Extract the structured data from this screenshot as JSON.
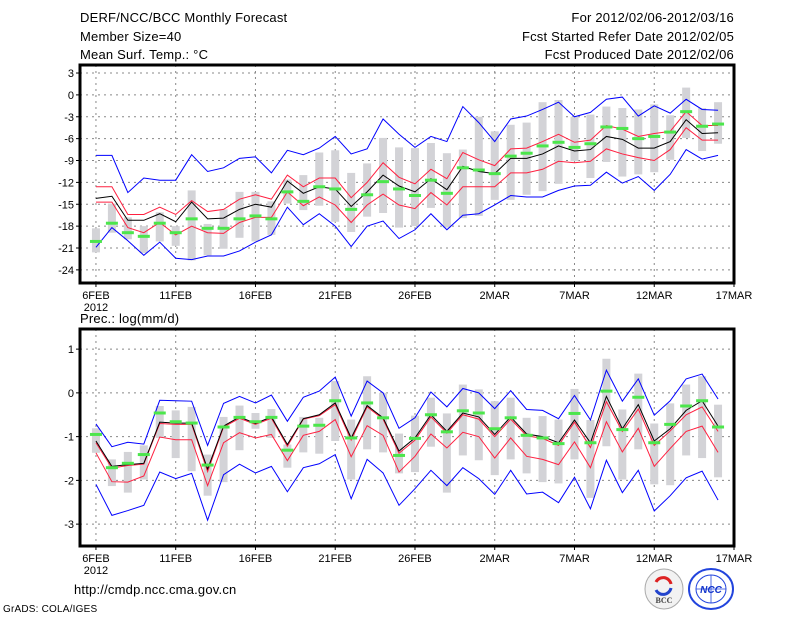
{
  "header": {
    "title": "DERF/NCC/BCC Monthly Forecast",
    "member_size": "Member Size=40",
    "variable": "Mean Surf. Temp.: °C",
    "period": "For 2012/02/06-2012/03/16",
    "start_date": "Fcst Started Refer Date 2012/02/05",
    "produced_date": "Fcst Produced Date 2012/02/06"
  },
  "footer": {
    "url": "http://cmdp.ncc.cma.gov.cn",
    "credit": "GrADS: COLA/IGES",
    "logo_bcc": "BCC",
    "logo_ncc": "NCC"
  },
  "colors": {
    "max_min": "#0000ff",
    "spread": "#ff2040",
    "mean": "#000000",
    "obs": "#4ce64c",
    "box": "#d3d3d7",
    "grid": "#888888"
  },
  "chart_data": [
    {
      "type": "line",
      "title": "Mean Surf. Temp.: °C",
      "xlabel": "",
      "ylabel": "",
      "x_tick_labels": [
        "6FEB",
        "11FEB",
        "16FEB",
        "21FEB",
        "26FEB",
        "2MAR",
        "7MAR",
        "12MAR",
        "17MAR"
      ],
      "x_tick_days": [
        0,
        5,
        10,
        15,
        20,
        25,
        30,
        35,
        40
      ],
      "year_label": "2012",
      "y_ticks": [
        3,
        0,
        -3,
        -6,
        -9,
        -12,
        -15,
        -18,
        -21,
        -24
      ],
      "y_tick_labels": [
        "3",
        "0",
        "-3",
        "-6",
        "-9",
        "-12",
        "-15",
        "-18",
        "-21",
        "-24"
      ],
      "ylim": [
        -25.8,
        4.1
      ],
      "xlim": [
        -1,
        40
      ],
      "grid": true,
      "series": [
        {
          "name": "max",
          "role": "max_min",
          "values": [
            -8.3,
            -8.3,
            -13.4,
            -11.4,
            -11.7,
            -11.7,
            -8.2,
            -10.5,
            -10,
            -8.7,
            -8.5,
            -10.7,
            -7.6,
            -8.2,
            -7.3,
            -5.7,
            -8.1,
            -7.4,
            -3.3,
            -5.4,
            -7.2,
            -5.7,
            -6.4,
            -1.6,
            -3.8,
            -6.4,
            -3.3,
            -2.9,
            -2.0,
            -1.0,
            -3.0,
            -2.4,
            -0.6,
            -0.3,
            -2.9,
            -1.5,
            -2.5,
            -0.6,
            -2.0,
            -2.1
          ]
        },
        {
          "name": "upper",
          "role": "spread",
          "values": [
            -12.6,
            -12.6,
            -16.4,
            -16.4,
            -15.4,
            -16.4,
            -14.5,
            -16,
            -15.7,
            -14.3,
            -13.7,
            -14.3,
            -11,
            -12.6,
            -11.4,
            -11.4,
            -14.1,
            -12,
            -9.3,
            -11.3,
            -12.2,
            -10.2,
            -11.5,
            -7.9,
            -8.9,
            -9.7,
            -7.4,
            -7.3,
            -6.4,
            -5.4,
            -6.5,
            -6.2,
            -4.2,
            -4.7,
            -5.7,
            -5.3,
            -5.0,
            -2.3,
            -4.2,
            -4.2
          ]
        },
        {
          "name": "mean",
          "role": "mean",
          "values": [
            -14.2,
            -13.9,
            -17.2,
            -17.2,
            -16.3,
            -17.4,
            -14.7,
            -17,
            -16.9,
            -15.7,
            -15,
            -15.4,
            -11.8,
            -13.5,
            -12.6,
            -12.9,
            -15.3,
            -13.3,
            -11,
            -12.5,
            -13.3,
            -11.5,
            -13,
            -9.8,
            -10.5,
            -10.8,
            -8.7,
            -8.7,
            -8.1,
            -7,
            -7.7,
            -7.5,
            -5.7,
            -6.1,
            -7.3,
            -7.3,
            -6.4,
            -3.4,
            -5.3,
            -5.2
          ]
        },
        {
          "name": "lower",
          "role": "spread",
          "values": [
            -14.7,
            -14.7,
            -18.2,
            -18.9,
            -17.5,
            -19.2,
            -18,
            -18.9,
            -19,
            -17.5,
            -16.8,
            -16.8,
            -13.3,
            -15.2,
            -14,
            -15.1,
            -17.5,
            -15.1,
            -13.6,
            -15.1,
            -15.6,
            -13.4,
            -15.1,
            -12.6,
            -12.6,
            -12.6,
            -10.7,
            -10.7,
            -10.2,
            -9.1,
            -9.3,
            -9.1,
            -7.4,
            -8.1,
            -8.6,
            -9,
            -7.5,
            -4.5,
            -6.2,
            -6.2
          ]
        },
        {
          "name": "min",
          "role": "max_min",
          "values": [
            -20.9,
            -18.2,
            -20,
            -22,
            -20.2,
            -22.4,
            -22.6,
            -22.1,
            -22.1,
            -21.4,
            -20.2,
            -19.2,
            -15.4,
            -17.8,
            -16.3,
            -18,
            -20.8,
            -18,
            -17.3,
            -19.7,
            -18.5,
            -16.3,
            -18.5,
            -16.5,
            -16.3,
            -15.1,
            -13.8,
            -14,
            -14,
            -13.1,
            -12.5,
            -12.4,
            -10.6,
            -12.1,
            -11.2,
            -13.1,
            -10.9,
            -7.5,
            -8.8,
            -8.3
          ]
        },
        {
          "name": "obs",
          "role": "obs",
          "values": [
            -20.1,
            -17.6,
            -18.9,
            -19.4,
            -17.6,
            -18.9,
            -17,
            -18.3,
            -18.3,
            -17,
            -16.6,
            -17,
            -13.3,
            -14.6,
            -12.6,
            -12.9,
            -15.7,
            -13.7,
            -11.9,
            -12.9,
            -13.8,
            -11.7,
            -13.5,
            -10,
            -10.3,
            -10.8,
            -8.4,
            -8,
            -7,
            -6.5,
            -7.2,
            -6.7,
            -4.4,
            -4.6,
            -6,
            -5.7,
            -5.1,
            -2.3,
            -4.3,
            -4
          ]
        }
      ],
      "boxes_high": [
        -18.3,
        -14.9,
        -16.8,
        -18,
        -16.1,
        -18,
        -13.1,
        -17.7,
        -15.7,
        -13.3,
        -13.3,
        -14.6,
        -11.6,
        -11,
        -7.9,
        -7.6,
        -10.7,
        -9.4,
        -5.9,
        -7.2,
        -7.3,
        -6.6,
        -8,
        -7.5,
        -3,
        -5,
        -4.1,
        -3.8,
        -1,
        -0.7,
        -3,
        -2.7,
        -1.6,
        -1.8,
        -2,
        -1.3,
        -2.8,
        1,
        -1.8,
        -1
      ],
      "boxes_low": [
        -21.6,
        -18.9,
        -19.8,
        -21.7,
        -20.1,
        -20.7,
        -22.7,
        -22,
        -21.1,
        -19.6,
        -20.1,
        -19.2,
        -14.9,
        -15.8,
        -15.2,
        -17.4,
        -18.8,
        -16.7,
        -16.2,
        -18.2,
        -18,
        -15.5,
        -18.2,
        -16.9,
        -16.6,
        -14.4,
        -14.4,
        -13.7,
        -13.2,
        -12.2,
        -9.1,
        -11.4,
        -9.2,
        -11.2,
        -10.9,
        -10.6,
        -8.9,
        -5.9,
        -7.7,
        -6.7
      ]
    },
    {
      "type": "line",
      "title": "Prec.: log(mm/d)",
      "xlabel": "",
      "ylabel": "",
      "x_tick_labels": [
        "6FEB",
        "11FEB",
        "16FEB",
        "21FEB",
        "26FEB",
        "2MAR",
        "7MAR",
        "12MAR",
        "17MAR"
      ],
      "x_tick_days": [
        0,
        5,
        10,
        15,
        20,
        25,
        30,
        35,
        40
      ],
      "year_label": "2012",
      "y_ticks": [
        1,
        0,
        -1,
        -2,
        -3
      ],
      "y_tick_labels": [
        "1",
        "0",
        "-1",
        "-2",
        "-3"
      ],
      "ylim": [
        -3.5,
        1.46
      ],
      "xlim": [
        -1,
        40
      ],
      "grid": true,
      "series": [
        {
          "name": "max",
          "role": "max_min",
          "values": [
            -0.71,
            -1.23,
            -1.13,
            -1.17,
            -0.17,
            -0.18,
            -0.19,
            -1.2,
            -0.24,
            -0.08,
            -0.23,
            -0.05,
            -0.65,
            -0.1,
            0.04,
            0.36,
            -0.53,
            0.27,
            0,
            -0.81,
            -0.57,
            0.02,
            -0.32,
            0.1,
            0,
            -0.36,
            0.05,
            -0.38,
            -0.4,
            -0.59,
            -0.06,
            -0.62,
            0.52,
            -0.19,
            0.32,
            -0.51,
            -0.18,
            0.32,
            0.43,
            -0.14
          ]
        },
        {
          "name": "upper",
          "role": "spread",
          "values": [
            -1.14,
            -1.72,
            -1.66,
            -1.63,
            -0.7,
            -0.72,
            -0.72,
            -1.8,
            -0.78,
            -0.58,
            -0.72,
            -0.58,
            -1.22,
            -0.6,
            -0.52,
            -0.27,
            -1.08,
            -0.32,
            -0.6,
            -1.38,
            -1.08,
            -0.55,
            -0.92,
            -0.5,
            -0.6,
            -1.0,
            -0.6,
            -0.98,
            -1.04,
            -1.2,
            -0.67,
            -1.25,
            -0.2,
            -0.88,
            -0.37,
            -1.2,
            -0.87,
            -0.5,
            -0.32,
            -0.88
          ]
        },
        {
          "name": "mean",
          "role": "mean",
          "values": [
            -1.1,
            -1.68,
            -1.64,
            -1.61,
            -0.67,
            -0.69,
            -0.69,
            -1.74,
            -0.76,
            -0.55,
            -0.7,
            -0.55,
            -1.18,
            -0.59,
            -0.5,
            -0.23,
            -1.03,
            -0.29,
            -0.57,
            -1.33,
            -1.03,
            -0.5,
            -0.88,
            -0.46,
            -0.55,
            -0.95,
            -0.55,
            -0.94,
            -1,
            -1.14,
            -0.62,
            -1.14,
            -0.08,
            -0.82,
            -0.27,
            -1.1,
            -0.82,
            -0.4,
            -0.18,
            -0.76
          ]
        },
        {
          "name": "lower",
          "role": "spread",
          "values": [
            -1.37,
            -2.03,
            -2.04,
            -1.9,
            -1.01,
            -1.07,
            -1.07,
            -2.12,
            -1.14,
            -0.91,
            -1.03,
            -0.95,
            -1.55,
            -0.97,
            -0.88,
            -0.61,
            -1.46,
            -0.75,
            -0.97,
            -1.81,
            -1.45,
            -0.94,
            -1.26,
            -0.9,
            -1,
            -1.49,
            -1.03,
            -1.45,
            -1.52,
            -1.64,
            -1.12,
            -1.71,
            -0.66,
            -1.35,
            -0.81,
            -1.68,
            -1.27,
            -0.88,
            -0.76,
            -1.36
          ]
        },
        {
          "name": "min",
          "role": "max_min",
          "values": [
            -2.09,
            -2.8,
            -2.69,
            -2.57,
            -1.81,
            -1.96,
            -1.84,
            -2.91,
            -1.87,
            -1.63,
            -1.83,
            -1.68,
            -2.26,
            -1.71,
            -1.62,
            -1.41,
            -2.42,
            -1.52,
            -1.83,
            -2.57,
            -2.19,
            -1.77,
            -2.12,
            -1.71,
            -1.96,
            -2.32,
            -1.77,
            -2.31,
            -2.27,
            -2.51,
            -1.93,
            -2.65,
            -1.54,
            -2.28,
            -1.77,
            -2.7,
            -2.35,
            -1.94,
            -1.79,
            -2.45
          ]
        },
        {
          "name": "obs",
          "role": "obs",
          "values": [
            -0.95,
            -1.71,
            -1.61,
            -1.41,
            -0.46,
            -0.66,
            -0.69,
            -1.65,
            -0.78,
            -0.56,
            -0.66,
            -0.56,
            -1.31,
            -0.76,
            -0.74,
            -0.18,
            -1.03,
            -0.23,
            -0.57,
            -1.43,
            -1.04,
            -0.5,
            -0.89,
            -0.41,
            -0.46,
            -0.82,
            -0.57,
            -0.97,
            -1.03,
            -1.16,
            -0.47,
            -1.14,
            0.04,
            -0.84,
            -0.1,
            -1.14,
            -0.72,
            -0.3,
            -0.18,
            -0.78
          ]
        }
      ],
      "boxes_high": [
        -0.81,
        -1.52,
        -1.35,
        -1.2,
        -0.3,
        -0.4,
        -0.32,
        -1.41,
        -0.55,
        -0.29,
        -0.46,
        -0.37,
        -1.18,
        -0.55,
        -0.57,
        0.27,
        -0.61,
        0.38,
        0,
        -0.93,
        -0.52,
        -0.11,
        -0.47,
        0.19,
        0.08,
        -0.19,
        -0.11,
        -0.57,
        -0.53,
        -0.61,
        0.09,
        -0.62,
        0.78,
        -0.38,
        0.44,
        -0.7,
        -0.24,
        0.19,
        0.38,
        -0.27
      ],
      "boxes_low": [
        -1.37,
        -2.13,
        -2.28,
        -1.98,
        -1.03,
        -1.49,
        -1.79,
        -2.35,
        -2.04,
        -1.31,
        -0.82,
        -1.03,
        -1.71,
        -1.36,
        -1.39,
        -1.1,
        -1.98,
        -1.29,
        -1.36,
        -1.84,
        -1.81,
        -1.23,
        -2.28,
        -1.43,
        -1.54,
        -1.88,
        -1.52,
        -1.84,
        -2.04,
        -2.07,
        -1.52,
        -2.4,
        -1.22,
        -1.98,
        -1.29,
        -2.09,
        -2.11,
        -1.43,
        -1.49,
        -1.93
      ]
    }
  ]
}
